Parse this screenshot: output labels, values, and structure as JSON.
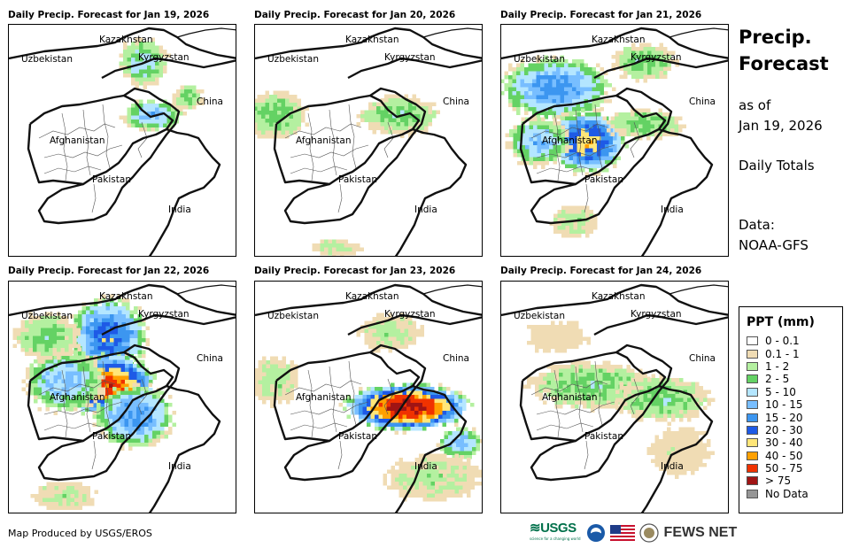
{
  "panels": [
    {
      "title": "Daily Precip. Forecast for Jan 19, 2026",
      "intensity": 1
    },
    {
      "title": "Daily Precip. Forecast for Jan 20, 2026",
      "intensity": 0
    },
    {
      "title": "Daily Precip. Forecast for Jan 21, 2026",
      "intensity": 3
    },
    {
      "title": "Daily Precip. Forecast for Jan 22, 2026",
      "intensity": 4
    },
    {
      "title": "Daily Precip. Forecast for Jan 23, 2026",
      "intensity": 2
    },
    {
      "title": "Daily Precip. Forecast for Jan 24, 2026",
      "intensity": 0
    }
  ],
  "country_labels": {
    "kazakhstan": "Kazakhstan",
    "uzbekistan": "Uzbekistan",
    "kyrgyzstan": "Kyrgyzstan",
    "china": "China",
    "afghanistan": "Afghanistan",
    "pakistan": "Pakistan",
    "india": "India"
  },
  "sidebar": {
    "title_line1": "Precip.",
    "title_line2": "Forecast",
    "as_of_label": "as of",
    "as_of_date": "Jan 19, 2026",
    "totals": "Daily Totals",
    "data_label": "Data:",
    "data_source": "NOAA-GFS"
  },
  "legend": {
    "title": "PPT (mm)",
    "items": [
      {
        "label": "0 - 0.1",
        "color": "#ffffff"
      },
      {
        "label": "0.1 - 1",
        "color": "#f0dcb4"
      },
      {
        "label": "1 - 2",
        "color": "#b4f0a0"
      },
      {
        "label": "2 - 5",
        "color": "#64d264"
      },
      {
        "label": "5 - 10",
        "color": "#b4e6ff"
      },
      {
        "label": "10 - 15",
        "color": "#78beff"
      },
      {
        "label": "15 - 20",
        "color": "#3c96f0"
      },
      {
        "label": "20 - 30",
        "color": "#1e5ae6"
      },
      {
        "label": "30 - 40",
        "color": "#ffe678"
      },
      {
        "label": "40 - 50",
        "color": "#ffa000"
      },
      {
        "label": "50 - 75",
        "color": "#f03200"
      },
      {
        "label": "> 75",
        "color": "#a01414"
      },
      {
        "label": "No Data",
        "color": "#969696"
      }
    ]
  },
  "footer": {
    "credit": "Map Produced by USGS/EROS",
    "usgs": "USGS",
    "usgs_tagline": "science for a changing world",
    "fewsnet": "FEWS NET"
  }
}
